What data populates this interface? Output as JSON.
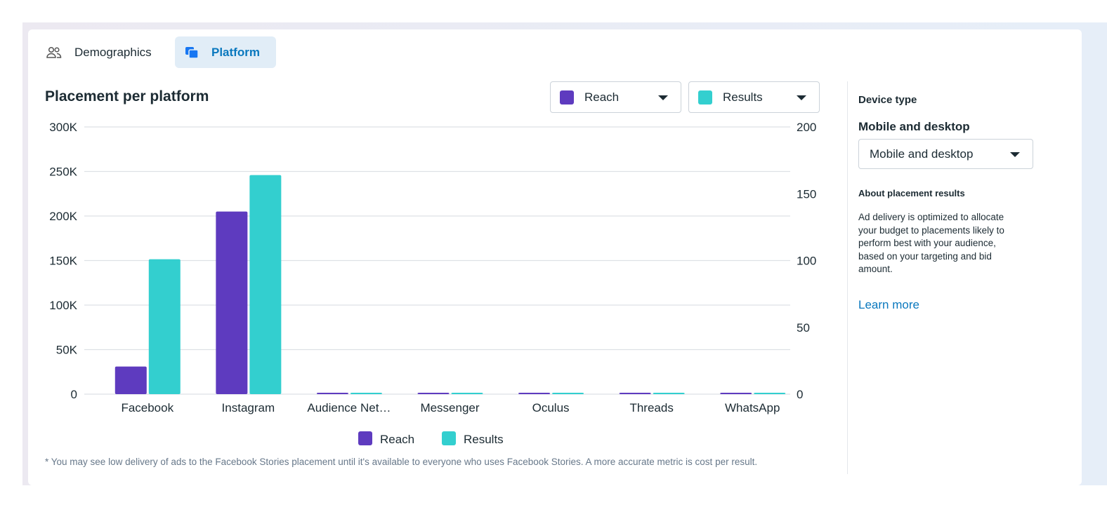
{
  "tabs": [
    {
      "label": "Demographics",
      "icon": "people-icon",
      "active": false
    },
    {
      "label": "Platform",
      "icon": "platform-icon",
      "active": true
    }
  ],
  "title": "Placement per platform",
  "metric_selectors": [
    {
      "label": "Reach",
      "color": "#5e3bbf"
    },
    {
      "label": "Results",
      "color": "#33cfcf"
    }
  ],
  "chart_data": {
    "type": "bar",
    "title": "Placement per platform",
    "categories": [
      "Facebook",
      "Instagram",
      "Audience Net…",
      "Messenger",
      "Oculus",
      "Threads",
      "WhatsApp"
    ],
    "series": [
      {
        "name": "Reach",
        "axis": "left",
        "color": "#5e3bbf",
        "values": [
          31000,
          205000,
          0,
          0,
          0,
          0,
          0
        ]
      },
      {
        "name": "Results",
        "axis": "right",
        "color": "#33cfcf",
        "values": [
          101,
          164,
          0,
          0,
          0,
          0,
          0
        ]
      }
    ],
    "y_left": {
      "ylim": [
        0,
        300000
      ],
      "ticks": [
        "0",
        "50K",
        "100K",
        "150K",
        "200K",
        "250K",
        "300K"
      ]
    },
    "y_right": {
      "ylim": [
        0,
        200
      ],
      "ticks": [
        "0",
        "50",
        "100",
        "150",
        "200"
      ]
    },
    "grid": true,
    "legend": "bottom"
  },
  "footnote": "* You may see low delivery of ads to the Facebook Stories placement until it's available to everyone who uses Facebook Stories. A more accurate metric is cost per result.",
  "side": {
    "device_type_label": "Device type",
    "device_value_heading": "Mobile and desktop",
    "device_select": "Mobile and desktop",
    "about_heading": "About placement results",
    "about_text": "Ad delivery is optimized to allocate your budget to placements likely to perform best with your audience, based on your targeting and bid amount.",
    "learn_more": "Learn more"
  }
}
